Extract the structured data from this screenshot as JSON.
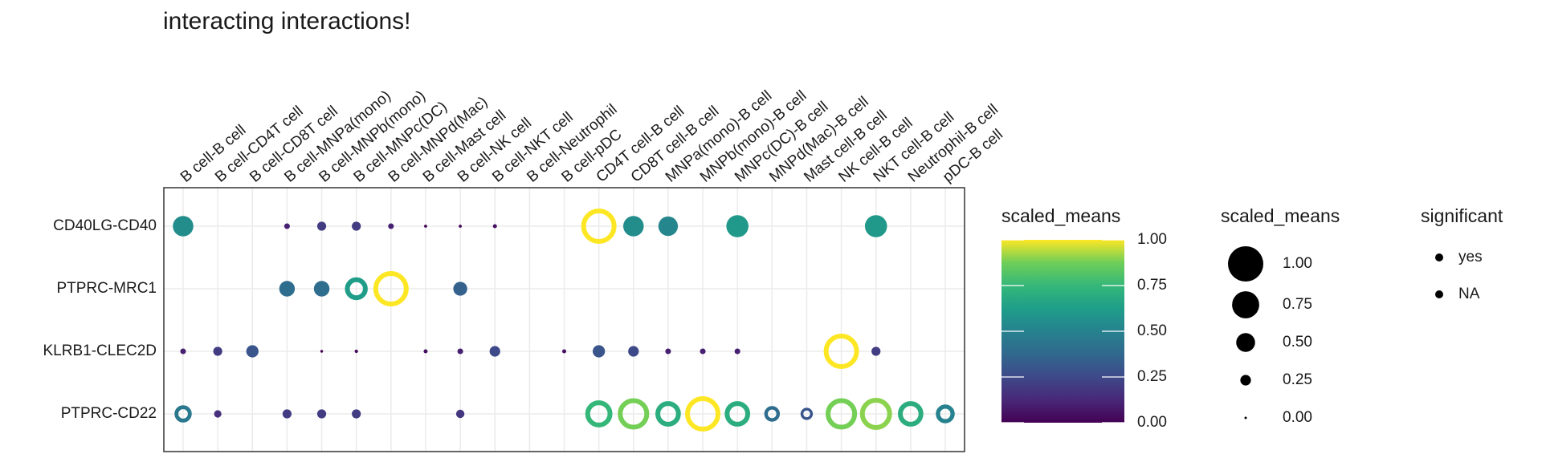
{
  "chart_data": {
    "type": "dot",
    "title": "interacting interactions!",
    "categories": [
      "B cell-B cell",
      "B cell-CD4T cell",
      "B cell-CD8T cell",
      "B cell-MNPa(mono)",
      "B cell-MNPb(mono)",
      "B cell-MNPc(DC)",
      "B cell-MNPd(Mac)",
      "B cell-Mast cell",
      "B cell-NK cell",
      "B cell-NKT cell",
      "B cell-Neutrophil",
      "B cell-pDC",
      "CD4T cell-B cell",
      "CD8T cell-B cell",
      "MNPa(mono)-B cell",
      "MNPb(mono)-B cell",
      "MNPc(DC)-B cell",
      "MNPd(Mac)-B cell",
      "Mast cell-B cell",
      "NK cell-B cell",
      "NKT cell-B cell",
      "Neutrophil-B cell",
      "pDC-B cell"
    ],
    "colormap": "viridis",
    "series": [
      {
        "name": "CD40LG-CD40",
        "values": [
          0.55,
          null,
          null,
          0.1,
          0.2,
          0.2,
          0.1,
          0.02,
          0.02,
          0.05,
          null,
          null,
          1.0,
          0.55,
          0.52,
          null,
          0.6,
          null,
          null,
          null,
          0.6,
          null,
          null
        ],
        "significant": [
          null,
          null,
          null,
          null,
          null,
          null,
          null,
          null,
          null,
          null,
          null,
          null,
          "yes",
          null,
          null,
          null,
          null,
          null,
          null,
          null,
          null,
          null,
          null
        ]
      },
      {
        "name": "PTPRC-MRC1",
        "values": [
          null,
          null,
          null,
          0.4,
          0.4,
          0.62,
          1.0,
          null,
          0.35,
          null,
          null,
          null,
          null,
          null,
          null,
          null,
          null,
          null,
          null,
          null,
          null,
          null,
          null
        ],
        "significant": [
          null,
          null,
          null,
          null,
          null,
          "yes",
          "yes",
          null,
          null,
          null,
          null,
          null,
          null,
          null,
          null,
          null,
          null,
          null,
          null,
          null,
          null,
          null,
          null
        ]
      },
      {
        "name": "KLRB1-CLEC2D",
        "values": [
          0.1,
          0.2,
          0.3,
          null,
          0.01,
          0.03,
          null,
          0.05,
          0.1,
          0.25,
          null,
          0.05,
          0.3,
          0.25,
          0.1,
          0.1,
          0.1,
          null,
          null,
          1.0,
          0.2,
          null,
          null
        ],
        "significant": [
          null,
          null,
          null,
          null,
          null,
          null,
          null,
          null,
          null,
          null,
          null,
          null,
          null,
          null,
          null,
          null,
          null,
          null,
          null,
          "yes",
          null,
          null,
          null
        ]
      },
      {
        "name": "PTPRC-CD22",
        "values": [
          0.45,
          0.15,
          null,
          0.2,
          0.2,
          0.2,
          null,
          null,
          0.18,
          null,
          null,
          null,
          0.75,
          0.88,
          0.7,
          1.0,
          0.7,
          0.4,
          0.3,
          0.88,
          0.9,
          0.7,
          0.5
        ],
        "significant": [
          "yes",
          null,
          null,
          null,
          null,
          null,
          null,
          null,
          null,
          null,
          null,
          null,
          "yes",
          "yes",
          "yes",
          "yes",
          "yes",
          "yes",
          "yes",
          "yes",
          "yes",
          "yes",
          "yes"
        ]
      }
    ],
    "grid": true,
    "color_legend": {
      "title": "scaled_means",
      "lim": [
        0,
        1
      ],
      "ticks": [
        {
          "value": 0,
          "label": "0.00"
        },
        {
          "value": 0.25,
          "label": "0.25"
        },
        {
          "value": 0.5,
          "label": "0.50"
        },
        {
          "value": 0.75,
          "label": "0.75"
        },
        {
          "value": 1,
          "label": "1.00"
        }
      ]
    },
    "size_legend": {
      "title": "scaled_means",
      "ticks": [
        {
          "value": 1,
          "label": "1.00"
        },
        {
          "value": 0.75,
          "label": "0.75"
        },
        {
          "value": 0.5,
          "label": "0.50"
        },
        {
          "value": 0.25,
          "label": "0.25"
        },
        {
          "value": 0,
          "label": "0.00"
        }
      ]
    },
    "significant_legend": {
      "title": "significant",
      "levels": [
        "yes",
        "NA"
      ]
    }
  }
}
